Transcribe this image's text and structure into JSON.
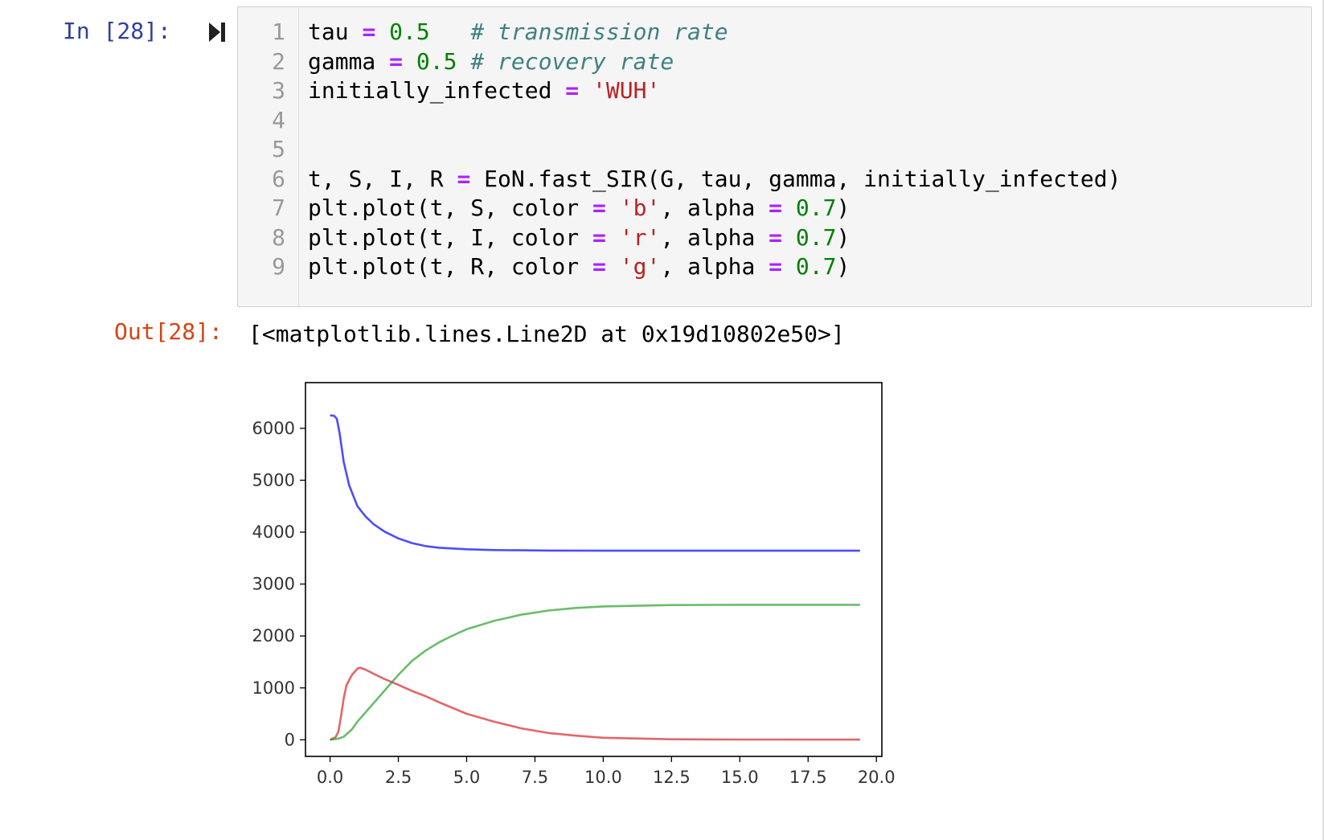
{
  "cell": {
    "in_prompt": "In [28]:",
    "out_prompt": "Out[28]:",
    "output_text": "[<matplotlib.lines.Line2D at 0x19d10802e50>]",
    "lines": [
      {
        "n": "1",
        "tokens": [
          {
            "t": "tau ",
            "c": ""
          },
          {
            "t": "=",
            "c": "op"
          },
          {
            "t": " ",
            "c": ""
          },
          {
            "t": "0.5",
            "c": "num"
          },
          {
            "t": "   ",
            "c": ""
          },
          {
            "t": "# transmission rate",
            "c": "com"
          }
        ]
      },
      {
        "n": "2",
        "tokens": [
          {
            "t": "gamma ",
            "c": ""
          },
          {
            "t": "=",
            "c": "op"
          },
          {
            "t": " ",
            "c": ""
          },
          {
            "t": "0.5",
            "c": "num"
          },
          {
            "t": " ",
            "c": ""
          },
          {
            "t": "# recovery rate",
            "c": "com"
          }
        ]
      },
      {
        "n": "3",
        "tokens": [
          {
            "t": "initially_infected ",
            "c": ""
          },
          {
            "t": "=",
            "c": "op"
          },
          {
            "t": " ",
            "c": ""
          },
          {
            "t": "'WUH'",
            "c": "str"
          }
        ]
      },
      {
        "n": "4",
        "tokens": []
      },
      {
        "n": "5",
        "tokens": []
      },
      {
        "n": "6",
        "tokens": [
          {
            "t": "t, S, I, R ",
            "c": ""
          },
          {
            "t": "=",
            "c": "op"
          },
          {
            "t": " EoN.fast_SIR(G, tau, gamma, initially_infected)",
            "c": ""
          }
        ]
      },
      {
        "n": "7",
        "tokens": [
          {
            "t": "plt.plot(t, S, color ",
            "c": ""
          },
          {
            "t": "=",
            "c": "op"
          },
          {
            "t": " ",
            "c": ""
          },
          {
            "t": "'b'",
            "c": "str"
          },
          {
            "t": ", alpha ",
            "c": ""
          },
          {
            "t": "=",
            "c": "op"
          },
          {
            "t": " ",
            "c": ""
          },
          {
            "t": "0.7",
            "c": "num"
          },
          {
            "t": ")",
            "c": ""
          }
        ]
      },
      {
        "n": "8",
        "tokens": [
          {
            "t": "plt.plot(t, I, color ",
            "c": ""
          },
          {
            "t": "=",
            "c": "op"
          },
          {
            "t": " ",
            "c": ""
          },
          {
            "t": "'r'",
            "c": "str"
          },
          {
            "t": ", alpha ",
            "c": ""
          },
          {
            "t": "=",
            "c": "op"
          },
          {
            "t": " ",
            "c": ""
          },
          {
            "t": "0.7",
            "c": "num"
          },
          {
            "t": ")",
            "c": ""
          }
        ]
      },
      {
        "n": "9",
        "tokens": [
          {
            "t": "plt.plot(t, R, color ",
            "c": ""
          },
          {
            "t": "=",
            "c": "op"
          },
          {
            "t": " ",
            "c": ""
          },
          {
            "t": "'g'",
            "c": "str"
          },
          {
            "t": ", alpha ",
            "c": ""
          },
          {
            "t": "=",
            "c": "op"
          },
          {
            "t": " ",
            "c": ""
          },
          {
            "t": "0.7",
            "c": "num"
          },
          {
            "t": ")",
            "c": ""
          }
        ]
      }
    ]
  },
  "colors": {
    "prompt_in": "#303f9f",
    "prompt_out": "#d84315",
    "operator": "#aa22ff",
    "number": "#008000",
    "string": "#ba2121",
    "comment": "#408080",
    "series_S": "#0000ff",
    "series_I": "#d62728",
    "series_R": "#2ca02c"
  },
  "icons": {
    "run": "run-cell-icon"
  },
  "chart_data": {
    "type": "line",
    "title": "",
    "xlabel": "",
    "ylabel": "",
    "xlim": [
      -0.9,
      20.2
    ],
    "ylim": [
      -320,
      6880
    ],
    "xticks": [
      0.0,
      2.5,
      5.0,
      7.5,
      10.0,
      12.5,
      15.0,
      17.5,
      20.0
    ],
    "xtick_labels": [
      "0.0",
      "2.5",
      "5.0",
      "7.5",
      "10.0",
      "12.5",
      "15.0",
      "17.5",
      "20.0"
    ],
    "yticks": [
      0,
      1000,
      2000,
      3000,
      4000,
      5000,
      6000
    ],
    "ytick_labels": [
      "0",
      "1000",
      "2000",
      "3000",
      "4000",
      "5000",
      "6000"
    ],
    "grid": false,
    "legend": "none",
    "alpha": 0.7,
    "series": [
      {
        "color": "b",
        "x": [
          0.0,
          0.15,
          0.25,
          0.35,
          0.5,
          0.7,
          1.0,
          1.3,
          1.6,
          2.0,
          2.5,
          3.0,
          3.5,
          4.0,
          5.0,
          6.0,
          7.0,
          8.0,
          10.0,
          12.5,
          15.0,
          17.5,
          19.4
        ],
        "y": [
          6250,
          6240,
          6180,
          5900,
          5350,
          4900,
          4500,
          4300,
          4150,
          4010,
          3880,
          3790,
          3730,
          3700,
          3670,
          3655,
          3650,
          3645,
          3643,
          3642,
          3642,
          3642,
          3642
        ]
      },
      {
        "color": "r",
        "x": [
          0.0,
          0.2,
          0.3,
          0.4,
          0.5,
          0.6,
          0.8,
          1.0,
          1.1,
          1.3,
          1.6,
          2.0,
          2.5,
          3.0,
          3.5,
          4.0,
          5.0,
          6.0,
          7.0,
          8.0,
          9.0,
          10.0,
          12.5,
          15.0,
          17.5,
          19.4
        ],
        "y": [
          0,
          50,
          150,
          450,
          800,
          1050,
          1250,
          1370,
          1390,
          1350,
          1270,
          1170,
          1060,
          940,
          840,
          720,
          500,
          350,
          220,
          130,
          80,
          40,
          10,
          5,
          3,
          3
        ]
      },
      {
        "color": "g",
        "x": [
          0.0,
          0.3,
          0.5,
          0.8,
          1.0,
          1.5,
          2.0,
          2.5,
          3.0,
          3.5,
          4.0,
          4.5,
          5.0,
          5.5,
          6.0,
          7.0,
          8.0,
          9.0,
          10.0,
          12.5,
          15.0,
          17.5,
          19.4
        ],
        "y": [
          0,
          20,
          60,
          200,
          350,
          650,
          950,
          1250,
          1520,
          1720,
          1880,
          2010,
          2130,
          2210,
          2290,
          2410,
          2490,
          2540,
          2570,
          2595,
          2600,
          2600,
          2600
        ]
      }
    ]
  }
}
